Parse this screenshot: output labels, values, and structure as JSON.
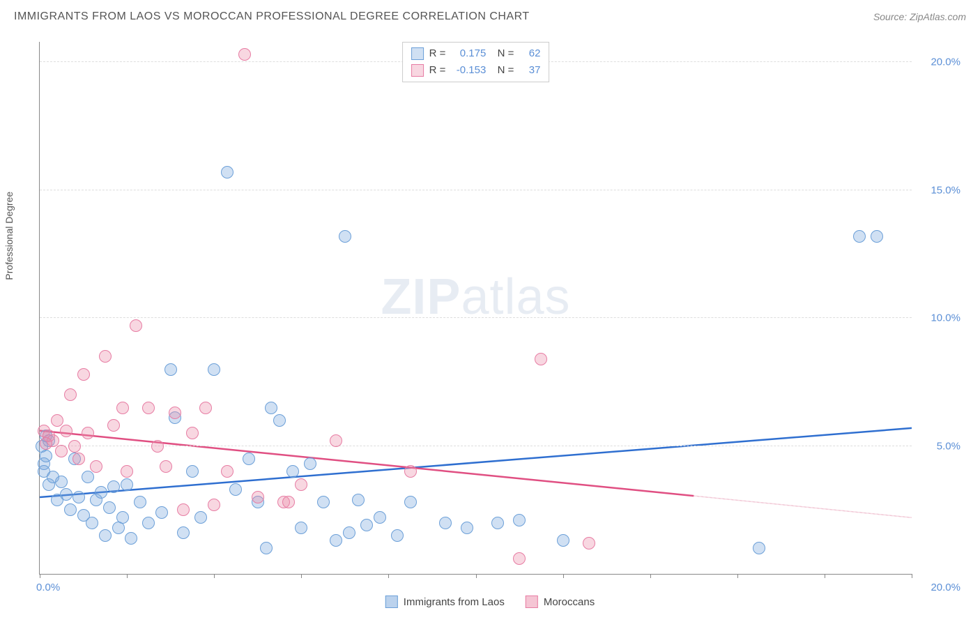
{
  "title": "IMMIGRANTS FROM LAOS VS MOROCCAN PROFESSIONAL DEGREE CORRELATION CHART",
  "source": "Source: ZipAtlas.com",
  "ylabel": "Professional Degree",
  "watermark_bold": "ZIP",
  "watermark_light": "atlas",
  "chart": {
    "type": "scatter",
    "xlim": [
      0,
      20
    ],
    "ylim": [
      0,
      20.8
    ],
    "x_tick_positions": [
      0,
      2,
      4,
      6,
      8,
      10,
      12,
      14,
      16,
      18,
      20
    ],
    "x_tick_labels_shown": {
      "0": "0.0%",
      "20": "20.0%"
    },
    "y_gridlines": [
      5,
      10,
      15,
      20
    ],
    "y_tick_labels": [
      "5.0%",
      "10.0%",
      "15.0%",
      "20.0%"
    ],
    "axis_color": "#888888",
    "grid_color": "#dddddd",
    "tick_label_color": "#5b8fd6",
    "background_color": "#ffffff"
  },
  "series": [
    {
      "name": "Immigrants from Laos",
      "fill": "rgba(120,165,220,0.35)",
      "stroke": "#6b9fd8",
      "trend_color": "#2f6fd0",
      "trend_dash_color": "#2f6fd0",
      "R": "0.175",
      "N": "62",
      "trend": {
        "x1": 0,
        "y1": 3.0,
        "x2": 20,
        "y2": 5.7,
        "solid_until_x": 20
      },
      "marker_radius": 9,
      "points": [
        [
          0.05,
          5.0
        ],
        [
          0.1,
          4.3
        ],
        [
          0.15,
          5.4
        ],
        [
          0.1,
          4.0
        ],
        [
          0.15,
          4.6
        ],
        [
          0.2,
          5.2
        ],
        [
          0.2,
          3.5
        ],
        [
          0.3,
          3.8
        ],
        [
          0.4,
          2.9
        ],
        [
          0.5,
          3.6
        ],
        [
          0.6,
          3.1
        ],
        [
          0.7,
          2.5
        ],
        [
          0.8,
          4.5
        ],
        [
          0.9,
          3.0
        ],
        [
          1.0,
          2.3
        ],
        [
          1.1,
          3.8
        ],
        [
          1.2,
          2.0
        ],
        [
          1.3,
          2.9
        ],
        [
          1.4,
          3.2
        ],
        [
          1.5,
          1.5
        ],
        [
          1.6,
          2.6
        ],
        [
          1.7,
          3.4
        ],
        [
          1.8,
          1.8
        ],
        [
          1.9,
          2.2
        ],
        [
          2.0,
          3.5
        ],
        [
          2.1,
          1.4
        ],
        [
          2.3,
          2.8
        ],
        [
          2.5,
          2.0
        ],
        [
          2.8,
          2.4
        ],
        [
          3.0,
          8.0
        ],
        [
          3.1,
          6.1
        ],
        [
          3.3,
          1.6
        ],
        [
          3.5,
          4.0
        ],
        [
          3.7,
          2.2
        ],
        [
          4.0,
          8.0
        ],
        [
          4.3,
          15.7
        ],
        [
          4.5,
          3.3
        ],
        [
          4.8,
          4.5
        ],
        [
          5.0,
          2.8
        ],
        [
          5.2,
          1.0
        ],
        [
          5.3,
          6.5
        ],
        [
          5.5,
          6.0
        ],
        [
          5.8,
          4.0
        ],
        [
          6.0,
          1.8
        ],
        [
          6.2,
          4.3
        ],
        [
          6.5,
          2.8
        ],
        [
          6.8,
          1.3
        ],
        [
          7.0,
          13.2
        ],
        [
          7.1,
          1.6
        ],
        [
          7.3,
          2.9
        ],
        [
          7.5,
          1.9
        ],
        [
          7.8,
          2.2
        ],
        [
          8.2,
          1.5
        ],
        [
          8.5,
          2.8
        ],
        [
          9.3,
          2.0
        ],
        [
          9.8,
          1.8
        ],
        [
          10.5,
          2.0
        ],
        [
          11.0,
          2.1
        ],
        [
          16.5,
          1.0
        ],
        [
          18.8,
          13.2
        ],
        [
          19.2,
          13.2
        ],
        [
          12.0,
          1.3
        ]
      ]
    },
    {
      "name": "Moroccans",
      "fill": "rgba(235,140,170,0.35)",
      "stroke": "#e77ca3",
      "trend_color": "#e04f82",
      "trend_dash_color": "#e8a0b8",
      "R": "-0.153",
      "N": "37",
      "trend": {
        "x1": 0,
        "y1": 5.6,
        "x2": 20,
        "y2": 2.2,
        "solid_until_x": 15
      },
      "marker_radius": 9,
      "points": [
        [
          0.1,
          5.6
        ],
        [
          0.2,
          5.4
        ],
        [
          0.3,
          5.2
        ],
        [
          0.4,
          6.0
        ],
        [
          0.5,
          4.8
        ],
        [
          0.6,
          5.6
        ],
        [
          0.7,
          7.0
        ],
        [
          0.8,
          5.0
        ],
        [
          0.9,
          4.5
        ],
        [
          1.0,
          7.8
        ],
        [
          1.1,
          5.5
        ],
        [
          1.3,
          4.2
        ],
        [
          1.5,
          8.5
        ],
        [
          1.7,
          5.8
        ],
        [
          1.9,
          6.5
        ],
        [
          2.0,
          4.0
        ],
        [
          2.2,
          9.7
        ],
        [
          2.5,
          6.5
        ],
        [
          2.7,
          5.0
        ],
        [
          2.9,
          4.2
        ],
        [
          3.1,
          6.3
        ],
        [
          3.3,
          2.5
        ],
        [
          3.5,
          5.5
        ],
        [
          3.8,
          6.5
        ],
        [
          4.0,
          2.7
        ],
        [
          4.3,
          4.0
        ],
        [
          4.7,
          20.3
        ],
        [
          5.0,
          3.0
        ],
        [
          5.6,
          2.8
        ],
        [
          5.7,
          2.8
        ],
        [
          6.0,
          3.5
        ],
        [
          6.8,
          5.2
        ],
        [
          8.5,
          4.0
        ],
        [
          11.0,
          0.6
        ],
        [
          11.5,
          8.4
        ],
        [
          12.6,
          1.2
        ],
        [
          0.15,
          5.1
        ]
      ]
    }
  ],
  "bottom_legend": [
    {
      "label": "Immigrants from Laos",
      "fill": "rgba(120,165,220,0.5)",
      "stroke": "#6b9fd8"
    },
    {
      "label": "Moroccans",
      "fill": "rgba(235,140,170,0.5)",
      "stroke": "#e77ca3"
    }
  ]
}
